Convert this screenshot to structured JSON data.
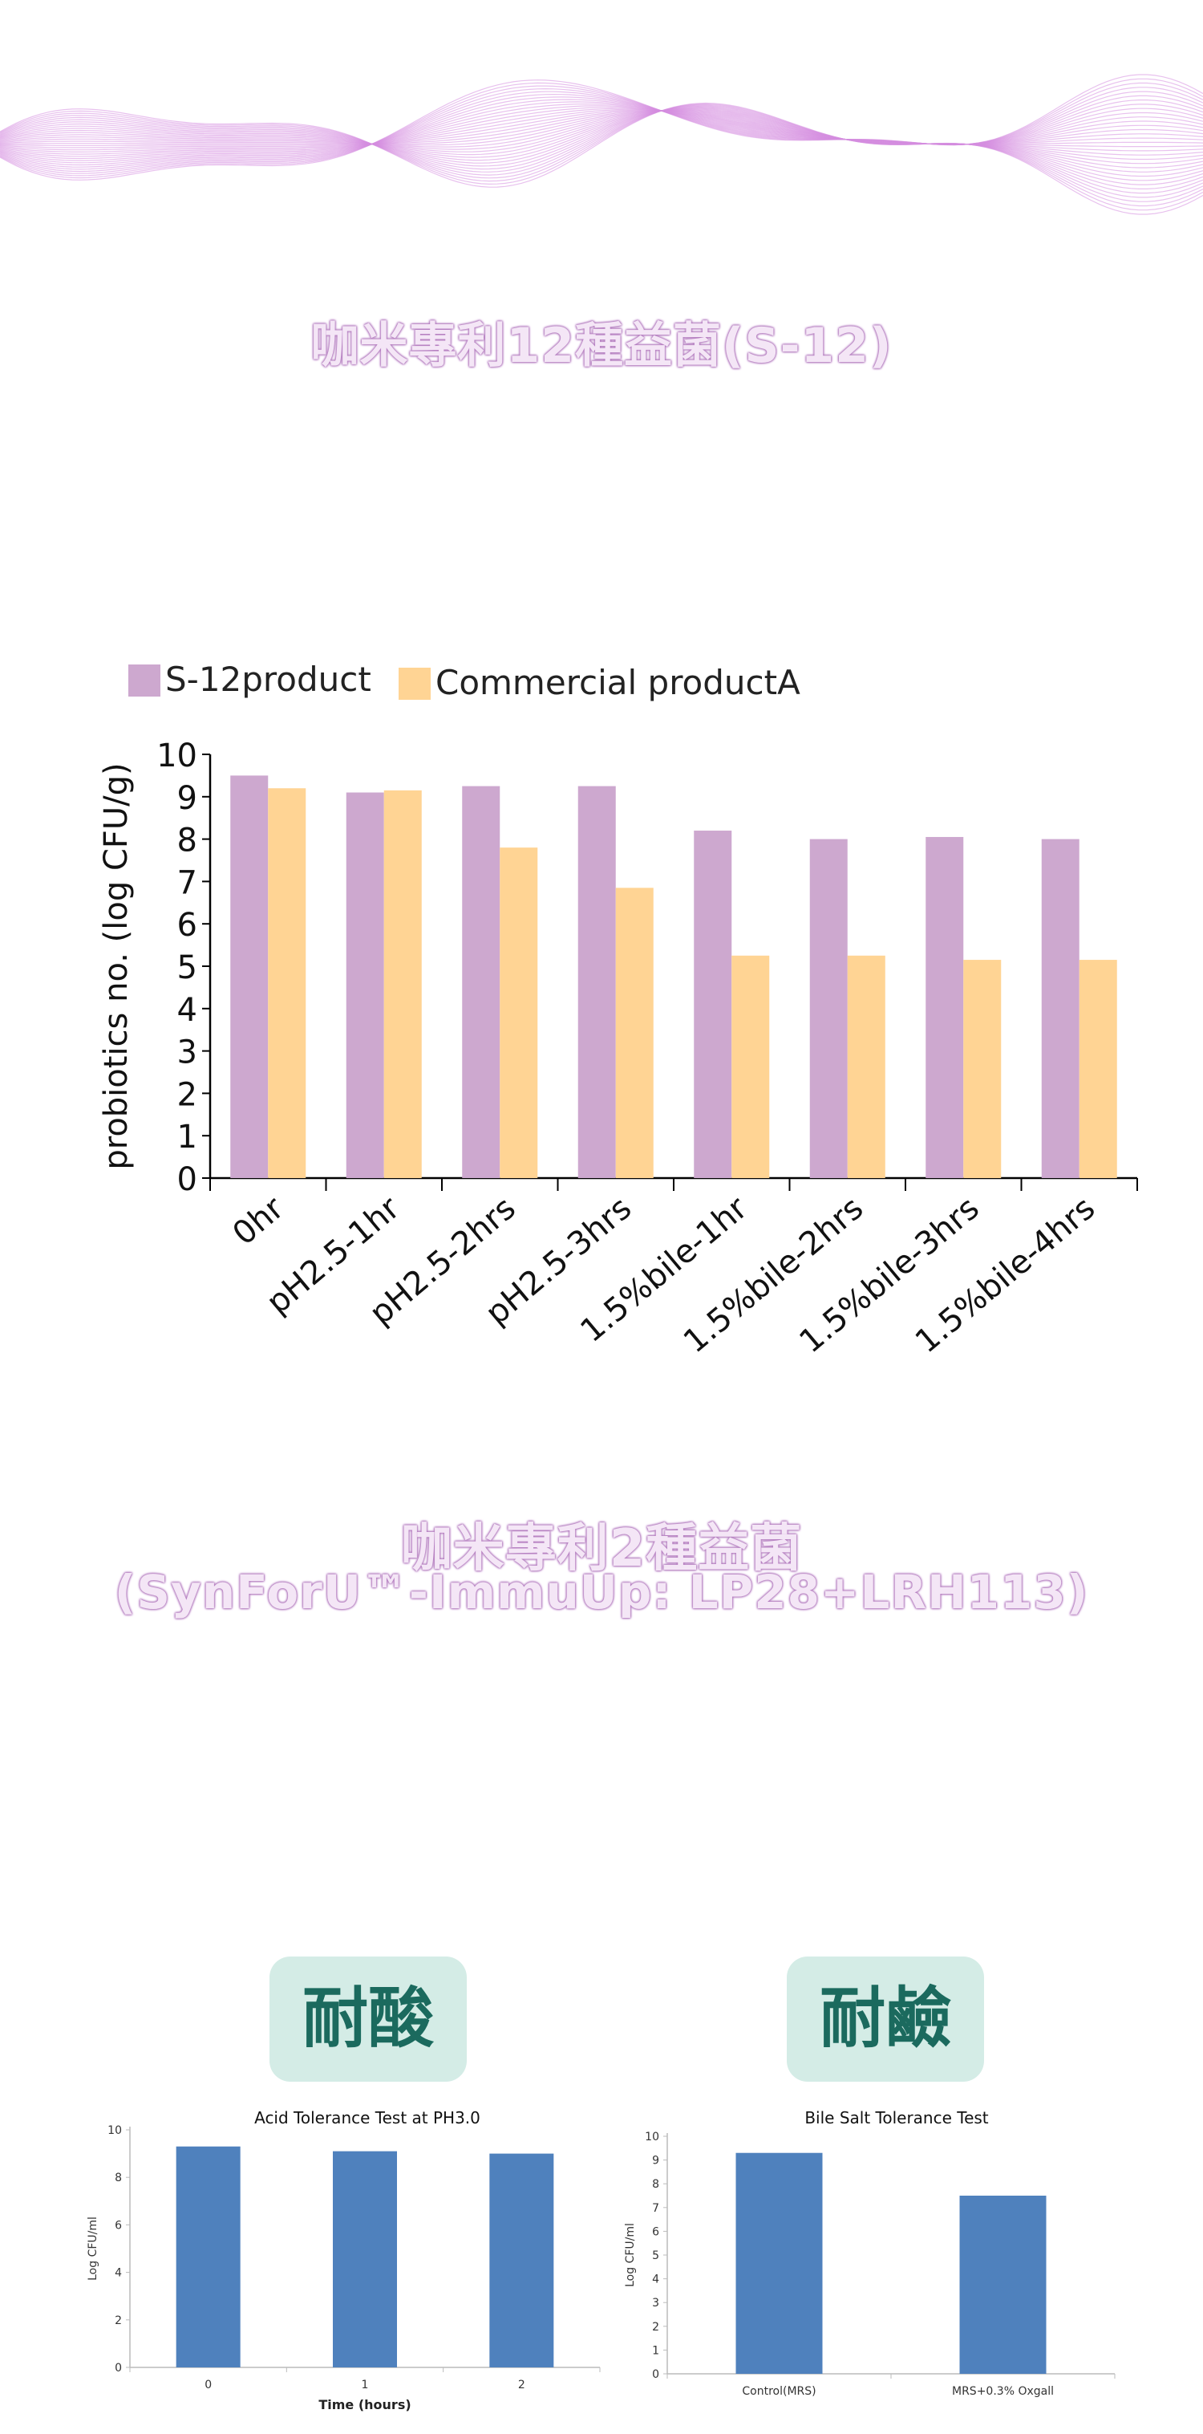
{
  "sections": {
    "s12_title": "咖米專利12種益菌(S-12)",
    "lp_title_line1": "咖米專利2種益菌",
    "lp_title_line2": "(SynForU™-ImmuUp: LP28+LRH113)",
    "acid_badge": "耐酸",
    "bile_badge": "耐鹼"
  },
  "colors": {
    "s12": "#cda8cf",
    "commercial": "#ffd494",
    "bar_blue": "#4f81bd",
    "heading_outline": "#b57ec0",
    "badge_bg": "#d4ece6",
    "badge_text": "#1b6a5e",
    "wave": "#d58ee0"
  },
  "chart_data": [
    {
      "type": "bar",
      "title": "",
      "xlabel": "",
      "ylabel": "probiotics no. (log CFU/g)",
      "ylim": [
        0,
        10
      ],
      "yticks": [
        "0",
        "1",
        "2",
        "3",
        "4",
        "5",
        "6",
        "7",
        "8",
        "9",
        "10"
      ],
      "legend_position": "top-left",
      "categories": [
        "0hr",
        "pH2.5-1hr",
        "pH2.5-2hrs",
        "pH2.5-3hrs",
        "1.5%bile-1hr",
        "1.5%bile-2hrs",
        "1.5%bile-3hrs",
        "1.5%bile-4hrs"
      ],
      "series": [
        {
          "name": "S-12product",
          "values": [
            9.5,
            9.1,
            9.25,
            9.25,
            8.2,
            8.0,
            8.05,
            8.0
          ]
        },
        {
          "name": "Commercial productA",
          "values": [
            9.2,
            9.15,
            7.8,
            6.85,
            5.25,
            5.25,
            5.15,
            5.15
          ]
        }
      ]
    },
    {
      "type": "bar",
      "title": "Acid Tolerance Test at PH3.0",
      "xlabel": "Time (hours)",
      "ylabel": "Log CFU/ml",
      "ylim": [
        0,
        10
      ],
      "yticks": [
        "0",
        "2",
        "4",
        "6",
        "8",
        "10"
      ],
      "categories": [
        "0",
        "1",
        "2"
      ],
      "values": [
        9.3,
        9.1,
        9.0
      ]
    },
    {
      "type": "bar",
      "title": "Bile Salt Tolerance Test",
      "xlabel": "",
      "ylabel": "Log CFU/ml",
      "ylim": [
        0,
        10
      ],
      "yticks": [
        "0",
        "1",
        "2",
        "3",
        "4",
        "5",
        "6",
        "7",
        "8",
        "9",
        "10"
      ],
      "categories": [
        "Control(MRS)",
        "MRS+0.3% Oxgall"
      ],
      "values": [
        9.3,
        7.5
      ]
    }
  ]
}
